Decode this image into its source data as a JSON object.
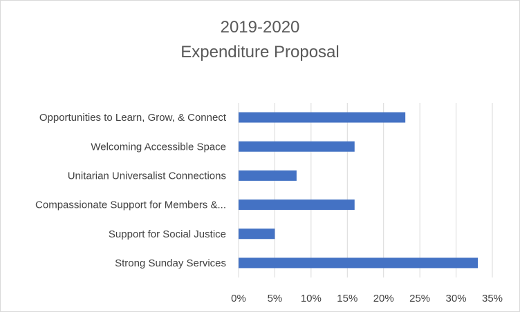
{
  "chart_data": {
    "type": "bar",
    "orientation": "horizontal",
    "title_lines": [
      "2019-2020",
      "Expenditure Proposal"
    ],
    "categories": [
      "Opportunities to Learn, Grow, & Connect",
      "Welcoming Accessible Space",
      "Unitarian Universalist Connections",
      "Compassionate Support for Members &...",
      "Support for Social Justice",
      "Strong Sunday Services"
    ],
    "values": [
      0.23,
      0.16,
      0.08,
      0.16,
      0.05,
      0.33
    ],
    "xlim": [
      0,
      0.35
    ],
    "x_ticks": [
      0,
      0.05,
      0.1,
      0.15,
      0.2,
      0.25,
      0.3,
      0.35
    ],
    "x_tick_labels": [
      "0%",
      "5%",
      "10%",
      "15%",
      "20%",
      "25%",
      "30%",
      "35%"
    ],
    "bar_color": "#4472c4",
    "gridlines": true,
    "legend": "none"
  }
}
